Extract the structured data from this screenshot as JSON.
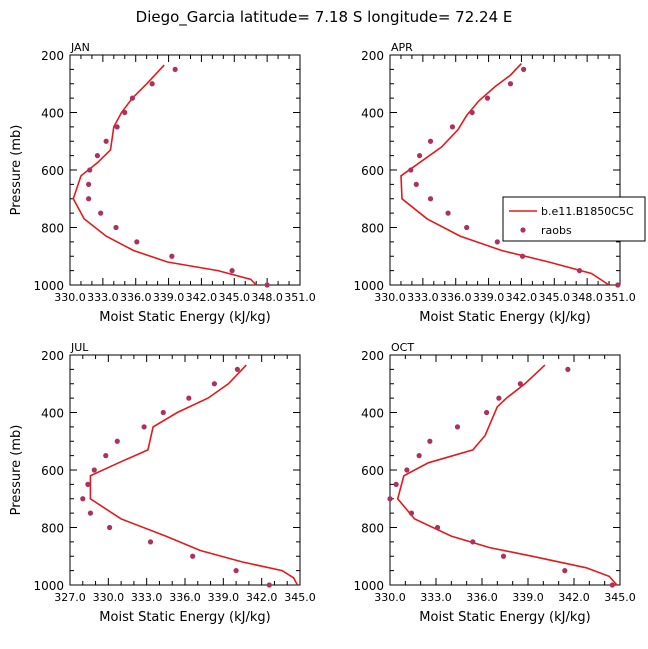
{
  "title": "Diego_Garcia   latitude= 7.18 S longitude= 72.24 E",
  "legend": {
    "model_label": "b.e11.B1850C5C",
    "obs_label": "raobs"
  },
  "colors": {
    "model": "#e31a1c",
    "obs": "#b0305c",
    "axis": "#000000"
  },
  "chart_data": [
    {
      "type": "line",
      "panel": "JAN",
      "xlabel": "Moist Static Energy (kJ/kg)",
      "ylabel": "Pressure (mb)",
      "xlim": [
        330.0,
        351.0
      ],
      "ylim": [
        1000,
        200
      ],
      "x_tick_labels": [
        "330.0",
        "333.0",
        "336.0",
        "339.0",
        "342.0",
        "345.0",
        "348.0",
        "351.0"
      ],
      "y_tick_labels": [
        "200",
        "400",
        "600",
        "800",
        "1000"
      ],
      "series": [
        {
          "name": "b.e11.B1850C5C",
          "kind": "line",
          "points": [
            [
              338.6,
              235
            ],
            [
              337.0,
              300
            ],
            [
              335.7,
              350
            ],
            [
              334.7,
              400
            ],
            [
              334.0,
              450
            ],
            [
              333.7,
              530
            ],
            [
              332.5,
              575
            ],
            [
              331.0,
              620
            ],
            [
              330.3,
              700
            ],
            [
              331.3,
              770
            ],
            [
              333.3,
              830
            ],
            [
              335.8,
              880
            ],
            [
              338.9,
              920
            ],
            [
              343.5,
              950
            ],
            [
              346.5,
              980
            ],
            [
              347.0,
              1000
            ]
          ]
        },
        {
          "name": "raobs",
          "kind": "scatter",
          "points": [
            [
              339.6,
              250
            ],
            [
              337.5,
              300
            ],
            [
              335.7,
              350
            ],
            [
              335.0,
              400
            ],
            [
              334.3,
              450
            ],
            [
              333.3,
              500
            ],
            [
              332.5,
              550
            ],
            [
              331.8,
              600
            ],
            [
              331.7,
              650
            ],
            [
              331.7,
              700
            ],
            [
              332.8,
              750
            ],
            [
              334.2,
              800
            ],
            [
              336.1,
              850
            ],
            [
              339.3,
              900
            ],
            [
              344.8,
              950
            ],
            [
              348.0,
              1000
            ]
          ]
        }
      ]
    },
    {
      "type": "line",
      "panel": "APR",
      "legend": "inside",
      "xlabel": "Moist Static Energy (kJ/kg)",
      "ylabel": "",
      "xlim": [
        330.0,
        351.0
      ],
      "ylim": [
        1000,
        200
      ],
      "x_tick_labels": [
        "330.0",
        "333.0",
        "336.0",
        "339.0",
        "342.0",
        "345.0",
        "348.0",
        "351.0"
      ],
      "y_tick_labels": [
        "200",
        "400",
        "600",
        "800",
        "1000"
      ],
      "series": [
        {
          "name": "b.e11.B1850C5C",
          "kind": "line",
          "points": [
            [
              342.0,
              230
            ],
            [
              341.0,
              270
            ],
            [
              339.6,
              310
            ],
            [
              338.1,
              360
            ],
            [
              337.0,
              410
            ],
            [
              336.2,
              460
            ],
            [
              334.7,
              520
            ],
            [
              331.0,
              620
            ],
            [
              331.1,
              700
            ],
            [
              333.4,
              770
            ],
            [
              336.4,
              830
            ],
            [
              340.2,
              880
            ],
            [
              344.5,
              920
            ],
            [
              348.4,
              960
            ],
            [
              350.0,
              1000
            ]
          ]
        },
        {
          "name": "raobs",
          "kind": "scatter",
          "points": [
            [
              342.2,
              250
            ],
            [
              341.0,
              300
            ],
            [
              338.9,
              350
            ],
            [
              337.5,
              400
            ],
            [
              335.7,
              450
            ],
            [
              333.7,
              500
            ],
            [
              332.7,
              550
            ],
            [
              331.9,
              600
            ],
            [
              332.4,
              650
            ],
            [
              333.7,
              700
            ],
            [
              335.3,
              750
            ],
            [
              337.0,
              800
            ],
            [
              339.8,
              850
            ],
            [
              342.1,
              900
            ],
            [
              347.3,
              950
            ],
            [
              350.8,
              1000
            ]
          ]
        }
      ]
    },
    {
      "type": "line",
      "panel": "JUL",
      "xlabel": "Moist Static Energy (kJ/kg)",
      "ylabel": "Pressure (mb)",
      "xlim": [
        327.0,
        345.0
      ],
      "ylim": [
        1000,
        200
      ],
      "x_tick_labels": [
        "327.0",
        "330.0",
        "333.0",
        "336.0",
        "339.0",
        "342.0",
        "345.0"
      ],
      "y_tick_labels": [
        "200",
        "400",
        "600",
        "800",
        "1000"
      ],
      "series": [
        {
          "name": "b.e11.B1850C5C",
          "kind": "line",
          "points": [
            [
              340.8,
              235
            ],
            [
              339.4,
              300
            ],
            [
              337.8,
              350
            ],
            [
              335.4,
              400
            ],
            [
              333.5,
              450
            ],
            [
              333.1,
              530
            ],
            [
              330.8,
              575
            ],
            [
              328.6,
              620
            ],
            [
              328.6,
              700
            ],
            [
              331.0,
              770
            ],
            [
              334.5,
              830
            ],
            [
              337.2,
              880
            ],
            [
              340.5,
              920
            ],
            [
              343.6,
              950
            ],
            [
              344.5,
              975
            ],
            [
              344.8,
              1000
            ]
          ]
        },
        {
          "name": "raobs",
          "kind": "scatter",
          "points": [
            [
              340.1,
              250
            ],
            [
              338.3,
              300
            ],
            [
              336.3,
              350
            ],
            [
              334.3,
              400
            ],
            [
              332.8,
              450
            ],
            [
              330.7,
              500
            ],
            [
              329.8,
              550
            ],
            [
              328.9,
              600
            ],
            [
              328.4,
              650
            ],
            [
              328.0,
              700
            ],
            [
              328.6,
              750
            ],
            [
              330.1,
              800
            ],
            [
              333.3,
              850
            ],
            [
              336.6,
              900
            ],
            [
              340.0,
              950
            ],
            [
              342.6,
              1000
            ]
          ]
        }
      ]
    },
    {
      "type": "line",
      "panel": "OCT",
      "xlabel": "Moist Static Energy (kJ/kg)",
      "ylabel": "",
      "xlim": [
        330.0,
        345.0
      ],
      "ylim": [
        1000,
        200
      ],
      "x_tick_labels": [
        "330.0",
        "333.0",
        "336.0",
        "339.0",
        "342.0",
        "345.0"
      ],
      "y_tick_labels": [
        "200",
        "400",
        "600",
        "800",
        "1000"
      ],
      "series": [
        {
          "name": "b.e11.B1850C5C",
          "kind": "line",
          "points": [
            [
              340.1,
              235
            ],
            [
              338.8,
              300
            ],
            [
              337.6,
              350
            ],
            [
              337.0,
              380
            ],
            [
              336.2,
              480
            ],
            [
              335.4,
              530
            ],
            [
              332.5,
              575
            ],
            [
              330.9,
              620
            ],
            [
              330.5,
              700
            ],
            [
              331.6,
              770
            ],
            [
              334.0,
              830
            ],
            [
              336.5,
              870
            ],
            [
              339.3,
              900
            ],
            [
              342.8,
              940
            ],
            [
              344.3,
              970
            ],
            [
              344.8,
              1000
            ]
          ]
        },
        {
          "name": "raobs",
          "kind": "scatter",
          "points": [
            [
              341.6,
              250
            ],
            [
              338.5,
              300
            ],
            [
              337.1,
              350
            ],
            [
              336.3,
              400
            ],
            [
              334.4,
              450
            ],
            [
              332.6,
              500
            ],
            [
              331.9,
              550
            ],
            [
              331.1,
              600
            ],
            [
              330.4,
              650
            ],
            [
              330.0,
              700
            ],
            [
              331.4,
              750
            ],
            [
              333.1,
              800
            ],
            [
              335.4,
              850
            ],
            [
              337.4,
              900
            ],
            [
              341.4,
              950
            ],
            [
              344.5,
              1000
            ]
          ]
        }
      ]
    }
  ]
}
